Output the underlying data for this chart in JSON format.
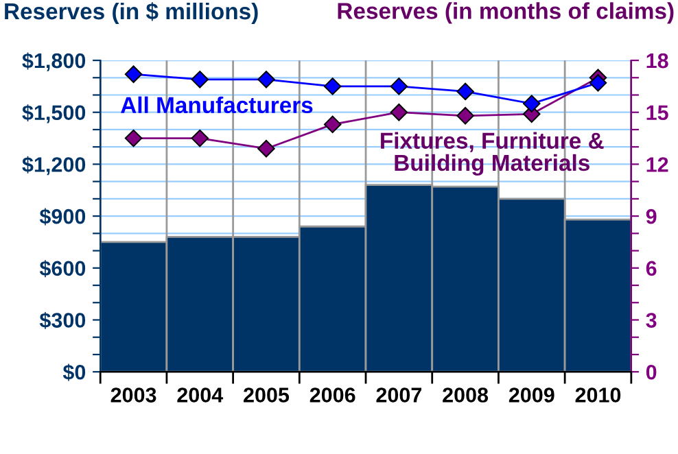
{
  "chart_data": {
    "type": "bar",
    "ylabel": "Reserves (in $ millions)",
    "y2label": "Reserves (in months of claims)",
    "categories": [
      "2003",
      "2004",
      "2005",
      "2006",
      "2007",
      "2008",
      "2009",
      "2010"
    ],
    "series": [
      {
        "color": "#003366",
        "values": [
          750,
          780,
          780,
          840,
          1080,
          1070,
          1000,
          880
        ]
      },
      {
        "type": "line",
        "axis": "y2",
        "name": "All Manufacturers",
        "color": "#0000ff",
        "values": [
          17.2,
          16.9,
          16.9,
          16.5,
          16.5,
          16.2,
          15.5,
          16.7
        ]
      },
      {
        "type": "line",
        "axis": "y2",
        "name": "Fixtures, Furniture & Building Materials",
        "color": "#800080",
        "values": [
          13.5,
          13.5,
          12.9,
          14.3,
          15.0,
          14.8,
          14.9,
          17.0
        ]
      }
    ],
    "ylim": [
      0,
      1800
    ],
    "yticks": [
      {
        "value": 0,
        "label": "$0"
      },
      {
        "value": 100,
        "label": null
      },
      {
        "value": 200,
        "label": null
      },
      {
        "value": 300,
        "label": "$300"
      },
      {
        "value": 400,
        "label": null
      },
      {
        "value": 500,
        "label": null
      },
      {
        "value": 600,
        "label": "$600"
      },
      {
        "value": 700,
        "label": null
      },
      {
        "value": 800,
        "label": null
      },
      {
        "value": 900,
        "label": "$900"
      },
      {
        "value": 1000,
        "label": null
      },
      {
        "value": 1100,
        "label": null
      },
      {
        "value": 1200,
        "label": "$1,200"
      },
      {
        "value": 1300,
        "label": null
      },
      {
        "value": 1400,
        "label": null
      },
      {
        "value": 1500,
        "label": "$1,500"
      },
      {
        "value": 1600,
        "label": null
      },
      {
        "value": 1700,
        "label": null
      },
      {
        "value": 1800,
        "label": "$1,800"
      }
    ],
    "y2lim": [
      0,
      18
    ],
    "y2ticks": [
      0,
      {
        "value": 1,
        "label": null
      },
      {
        "value": 2,
        "label": null
      },
      3,
      {
        "value": 4,
        "label": null
      },
      {
        "value": 5,
        "label": null
      },
      6,
      {
        "value": 7,
        "label": null
      },
      {
        "value": 8,
        "label": null
      },
      9,
      {
        "value": 10,
        "label": null
      },
      {
        "value": 11,
        "label": null
      },
      12,
      {
        "value": 13,
        "label": null
      },
      {
        "value": 14,
        "label": null
      },
      15,
      {
        "value": 16,
        "label": null
      },
      {
        "value": 17,
        "label": null
      },
      18
    ],
    "grid": true,
    "marker": "diamond",
    "line_style": "solid",
    "legend": false
  }
}
